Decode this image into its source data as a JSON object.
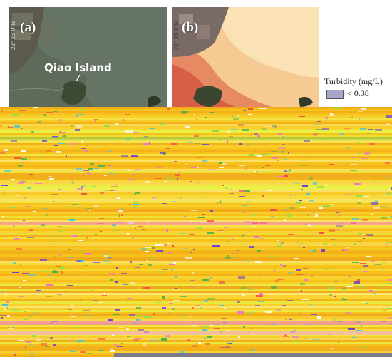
{
  "panels": [
    {
      "label": "(a)",
      "latitude_label": "22° 36' 0\"N",
      "place_label": "Qiao Island"
    },
    {
      "label": "(b)",
      "latitude_label": "22° 36' 0\"N"
    }
  ],
  "legend": {
    "title": "Turbidity (mg/L)",
    "entries": [
      {
        "label": "< 0.38",
        "color": "#a5a6c9"
      }
    ]
  },
  "colors": {
    "water_rgb": "#5f6e5c",
    "land_rgb": "#6b6b5a",
    "turbidity_high": "#d9604a",
    "turbidity_mid": "#f2b27a",
    "turbidity_low": "#fbe2b4",
    "noise_primary": "#f7c11a",
    "noise_secondary": "#f5e64a"
  },
  "icons": {
    "north_arrow": "north-arrow-icon"
  }
}
